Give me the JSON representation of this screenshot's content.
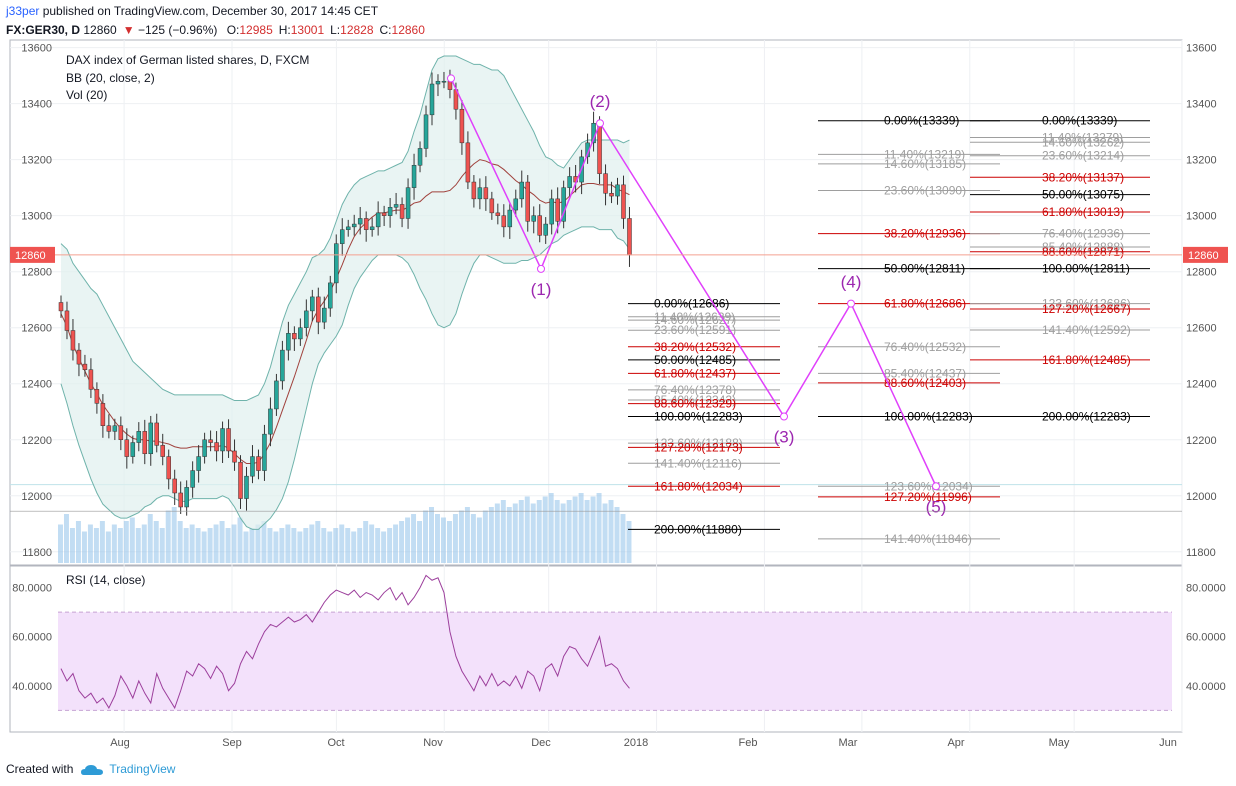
{
  "header": {
    "author": "j33per",
    "published_text": "published on TradingView.com, December 30, 2017 14:45 CET",
    "symbol": "FX:GER30, D",
    "last": "12860",
    "change": "−125 (−0.96%)",
    "ohlc": {
      "o_label": "O:",
      "o": "12985",
      "h_label": "H:",
      "h": "13001",
      "l_label": "L:",
      "l": "12828",
      "c_label": "C:",
      "c": "12860"
    }
  },
  "footer": {
    "created_with": "Created with",
    "brand": "TradingView"
  },
  "colors": {
    "up": "#26a69a",
    "down": "#ef5350",
    "wave": "#e040fb",
    "bb_fill": "#dff0ee",
    "bb_line": "#6fb3ab",
    "ma": "#a0413c",
    "rsi": "#9c3f9c",
    "rsi_band": "#f3e1fb",
    "fib_red": "#cc0000",
    "fib_black": "#000000",
    "fib_grey": "#9e9e9e",
    "price_tag": "#ef5350"
  },
  "chart_data": {
    "type": "candlestick",
    "title": "DAX index of German listed shares, D, FXCM",
    "indicators": [
      "BB (20, close, 2)",
      "Vol (20)"
    ],
    "y_axis": {
      "range": [
        11760,
        13620
      ],
      "ticks": [
        "13600",
        "13400",
        "13200",
        "13000",
        "12800",
        "12600",
        "12400",
        "12200",
        "12000",
        "11800"
      ],
      "tick_values": [
        13600,
        13400,
        13200,
        13000,
        12800,
        12600,
        12400,
        12200,
        12000,
        11800
      ],
      "last_price_tag": "12860",
      "last_price": 12860
    },
    "x_axis": {
      "labels": [
        "Aug",
        "Sep",
        "Oct",
        "Nov",
        "Dec",
        "2018",
        "Feb",
        "Mar",
        "Apr",
        "May",
        "Jun"
      ],
      "positions_month_index": [
        1,
        2,
        3,
        4,
        5,
        6,
        7,
        8,
        9,
        10,
        11
      ],
      "start": "2017-07-01"
    },
    "closes": [
      12660,
      12590,
      12520,
      12470,
      12450,
      12380,
      12330,
      12250,
      12230,
      12250,
      12200,
      12140,
      12190,
      12230,
      12150,
      12260,
      12180,
      12140,
      12060,
      12010,
      11960,
      12030,
      12090,
      12140,
      12200,
      12190,
      12160,
      12240,
      12160,
      12120,
      11990,
      12070,
      12140,
      12090,
      12220,
      12310,
      12410,
      12520,
      12580,
      12560,
      12600,
      12660,
      12710,
      12620,
      12670,
      12760,
      12900,
      12950,
      12960,
      12970,
      12990,
      12950,
      12960,
      13010,
      13000,
      13030,
      13040,
      12990,
      13100,
      13180,
      13240,
      13360,
      13470,
      13480,
      13480,
      13450,
      13380,
      13260,
      13120,
      13060,
      13100,
      13060,
      13010,
      13000,
      12960,
      13020,
      13060,
      13120,
      12980,
      13000,
      12930,
      12970,
      13060,
      12980,
      13100,
      13140,
      13120,
      13210,
      13260,
      13330,
      13150,
      13080,
      13070,
      13110,
      12990,
      12860
    ],
    "bb_upper": [
      12900,
      12880,
      12830,
      12800,
      12770,
      12740,
      12720,
      12680,
      12640,
      12600,
      12560,
      12520,
      12480,
      12460,
      12440,
      12420,
      12400,
      12380,
      12370,
      12360,
      12360,
      12360,
      12360,
      12360,
      12360,
      12360,
      12360,
      12360,
      12350,
      12340,
      12340,
      12340,
      12350,
      12360,
      12400,
      12460,
      12540,
      12620,
      12680,
      12720,
      12760,
      12800,
      12850,
      12860,
      12880,
      12920,
      12980,
      13040,
      13080,
      13110,
      13130,
      13140,
      13150,
      13160,
      13160,
      13170,
      13180,
      13190,
      13230,
      13300,
      13360,
      13440,
      13520,
      13560,
      13570,
      13570,
      13570,
      13560,
      13550,
      13540,
      13540,
      13530,
      13520,
      13520,
      13500,
      13460,
      13420,
      13380,
      13340,
      13300,
      13250,
      13210,
      13200,
      13180,
      13170,
      13200,
      13230,
      13260,
      13270,
      13270,
      13270,
      13270,
      13270,
      13270,
      13260,
      13270
    ],
    "bb_lower": [
      12400,
      12330,
      12250,
      12180,
      12120,
      12060,
      12010,
      11970,
      11950,
      11930,
      11920,
      11920,
      11930,
      11940,
      11960,
      11970,
      11990,
      12000,
      12000,
      11990,
      11980,
      11980,
      11990,
      11990,
      11990,
      11990,
      11990,
      12000,
      11990,
      11960,
      11920,
      11890,
      11880,
      11880,
      11900,
      11920,
      11950,
      11990,
      12050,
      12130,
      12220,
      12310,
      12400,
      12470,
      12510,
      12540,
      12570,
      12610,
      12680,
      12740,
      12780,
      12810,
      12840,
      12860,
      12860,
      12860,
      12860,
      12850,
      12830,
      12790,
      12740,
      12700,
      12650,
      12610,
      12600,
      12610,
      12650,
      12720,
      12780,
      12830,
      12860,
      12860,
      12850,
      12840,
      12830,
      12830,
      12830,
      12840,
      12840,
      12850,
      12860,
      12880,
      12900,
      12910,
      12930,
      12940,
      12950,
      12960,
      12960,
      12960,
      12950,
      12950,
      12950,
      12920,
      12910,
      12880
    ],
    "volume_relative": [
      0.55,
      0.7,
      0.5,
      0.6,
      0.45,
      0.55,
      0.5,
      0.6,
      0.45,
      0.55,
      0.5,
      0.6,
      0.65,
      0.5,
      0.55,
      0.7,
      0.6,
      0.5,
      0.75,
      0.8,
      0.6,
      0.5,
      0.55,
      0.5,
      0.45,
      0.5,
      0.55,
      0.6,
      0.5,
      0.55,
      0.65,
      0.45,
      0.5,
      0.55,
      0.6,
      0.5,
      0.45,
      0.5,
      0.55,
      0.5,
      0.45,
      0.5,
      0.55,
      0.6,
      0.5,
      0.45,
      0.5,
      0.55,
      0.5,
      0.45,
      0.5,
      0.6,
      0.55,
      0.5,
      0.45,
      0.5,
      0.55,
      0.6,
      0.65,
      0.7,
      0.6,
      0.75,
      0.8,
      0.7,
      0.65,
      0.6,
      0.7,
      0.75,
      0.8,
      0.7,
      0.65,
      0.75,
      0.8,
      0.85,
      0.9,
      0.8,
      0.85,
      0.9,
      0.95,
      0.85,
      0.9,
      0.95,
      1.0,
      0.9,
      0.85,
      0.9,
      0.95,
      1.0,
      0.9,
      0.95,
      1.0,
      0.85,
      0.9,
      0.8,
      0.7,
      0.6
    ],
    "wave_points": [
      {
        "label": "",
        "day": 62,
        "price": 13490
      },
      {
        "label": "(1)",
        "day": 76,
        "price": 12810
      },
      {
        "label": "(2)",
        "day": 90,
        "price": 13330
      },
      {
        "label": "(3)",
        "day": 127,
        "price": 12283
      },
      {
        "label": "(4)",
        "day": 145,
        "price": 12686
      },
      {
        "label": "(5)",
        "day": 160,
        "price": 12034
      }
    ],
    "fib_groups": [
      {
        "x_day": [
          96,
          137
        ],
        "levels": [
          {
            "label": "0.00%(12686)",
            "price": 12686,
            "color": "black"
          },
          {
            "label": "11.40%(12639)",
            "price": 12639,
            "color": "grey"
          },
          {
            "label": "14.60%(12627)",
            "price": 12627,
            "color": "grey"
          },
          {
            "label": "23.60%(12591)",
            "price": 12591,
            "color": "grey"
          },
          {
            "label": "38.20%(12532)",
            "price": 12532,
            "color": "red"
          },
          {
            "label": "50.00%(12485)",
            "price": 12485,
            "color": "black"
          },
          {
            "label": "61.80%(12437)",
            "price": 12437,
            "color": "red"
          },
          {
            "label": "76.40%(12378)",
            "price": 12378,
            "color": "grey"
          },
          {
            "label": "85.40%(12342)",
            "price": 12342,
            "color": "grey"
          },
          {
            "label": "88.60%(12329)",
            "price": 12329,
            "color": "red"
          },
          {
            "label": "100.00%(12283)",
            "price": 12283,
            "color": "black"
          },
          {
            "label": "123.60%(12188)",
            "price": 12188,
            "color": "grey"
          },
          {
            "label": "127.20%(12173)",
            "price": 12173,
            "color": "red"
          },
          {
            "label": "141.40%(12116)",
            "price": 12116,
            "color": "grey"
          },
          {
            "label": "161.80%(12034)",
            "price": 12034,
            "color": "red"
          },
          {
            "label": "200.00%(11880)",
            "price": 11880,
            "color": "black"
          }
        ]
      },
      {
        "x_day": [
          128,
          161
        ],
        "levels": [
          {
            "label": "0.00%(13339)",
            "price": 13339,
            "color": "black"
          },
          {
            "label": "11.40%(13219)",
            "price": 13219,
            "color": "grey"
          },
          {
            "label": "14.60%(13185)",
            "price": 13185,
            "color": "grey"
          },
          {
            "label": "23.60%(13090)",
            "price": 13090,
            "color": "grey"
          },
          {
            "label": "38.20%(12936)",
            "price": 12936,
            "color": "red"
          },
          {
            "label": "50.00%(12811)",
            "price": 12811,
            "color": "black"
          },
          {
            "label": "61.80%(12686)",
            "price": 12686,
            "color": "red"
          },
          {
            "label": "76.40%(12532)",
            "price": 12532,
            "color": "grey"
          },
          {
            "label": "85.40%(12437)",
            "price": 12437,
            "color": "grey"
          },
          {
            "label": "88.60%(12403)",
            "price": 12403,
            "color": "red"
          },
          {
            "label": "100.00%(12283)",
            "price": 12283,
            "color": "black"
          },
          {
            "label": "123.60%(12034)",
            "price": 12034,
            "color": "grey"
          },
          {
            "label": "127.20%(11996)",
            "price": 11996,
            "color": "red"
          },
          {
            "label": "141.40%(11846)",
            "price": 11846,
            "color": "grey"
          }
        ]
      },
      {
        "x_day": [
          143,
          176
        ],
        "levels": [
          {
            "label": "0.00%(13339)",
            "price": 13339,
            "color": "black"
          },
          {
            "label": "11.40%(13279)",
            "price": 13279,
            "color": "grey"
          },
          {
            "label": "14.60%(13262)",
            "price": 13262,
            "color": "grey"
          },
          {
            "label": "23.60%(13214)",
            "price": 13214,
            "color": "grey"
          },
          {
            "label": "38.20%(13137)",
            "price": 13137,
            "color": "red"
          },
          {
            "label": "50.00%(13075)",
            "price": 13075,
            "color": "black"
          },
          {
            "label": "61.80%(13013)",
            "price": 13013,
            "color": "red"
          },
          {
            "label": "76.40%(12936)",
            "price": 12936,
            "color": "grey"
          },
          {
            "label": "85.40%(12888)",
            "price": 12888,
            "color": "grey"
          },
          {
            "label": "88.60%(12871)",
            "price": 12871,
            "color": "red"
          },
          {
            "label": "100.00%(12811)",
            "price": 12811,
            "color": "black"
          },
          {
            "label": "123.60%(12686)",
            "price": 12686,
            "color": "grey"
          },
          {
            "label": "127.20%(12667)",
            "price": 12667,
            "color": "red"
          },
          {
            "label": "141.40%(12592)",
            "price": 12592,
            "color": "grey"
          },
          {
            "label": "161.80%(12485)",
            "price": 12485,
            "color": "red"
          },
          {
            "label": "200.00%(12283)",
            "price": 12283,
            "color": "black"
          }
        ]
      }
    ],
    "rsi": {
      "title": "RSI (14, close)",
      "range": [
        22,
        88
      ],
      "ticks": [
        "80.0000",
        "60.0000",
        "40.0000"
      ],
      "tick_values": [
        80,
        60,
        40
      ],
      "band": [
        70,
        30
      ],
      "values": [
        47,
        42,
        45,
        38,
        35,
        37,
        33,
        35,
        31,
        36,
        44,
        40,
        35,
        42,
        37,
        33,
        45,
        39,
        35,
        31,
        38,
        46,
        44,
        49,
        47,
        43,
        48,
        45,
        38,
        41,
        49,
        54,
        51,
        57,
        62,
        65,
        64,
        66,
        68,
        66,
        67,
        69,
        66,
        70,
        74,
        77,
        79,
        78,
        77,
        79,
        76,
        78,
        77,
        75,
        78,
        80,
        75,
        78,
        73,
        76,
        80,
        85,
        83,
        84,
        78,
        62,
        52,
        46,
        42,
        38,
        44,
        40,
        45,
        40,
        42,
        40,
        44,
        39,
        46,
        44,
        38,
        47,
        49,
        44,
        52,
        56,
        55,
        51,
        48,
        54,
        60,
        48,
        49,
        47,
        42,
        39
      ]
    }
  }
}
